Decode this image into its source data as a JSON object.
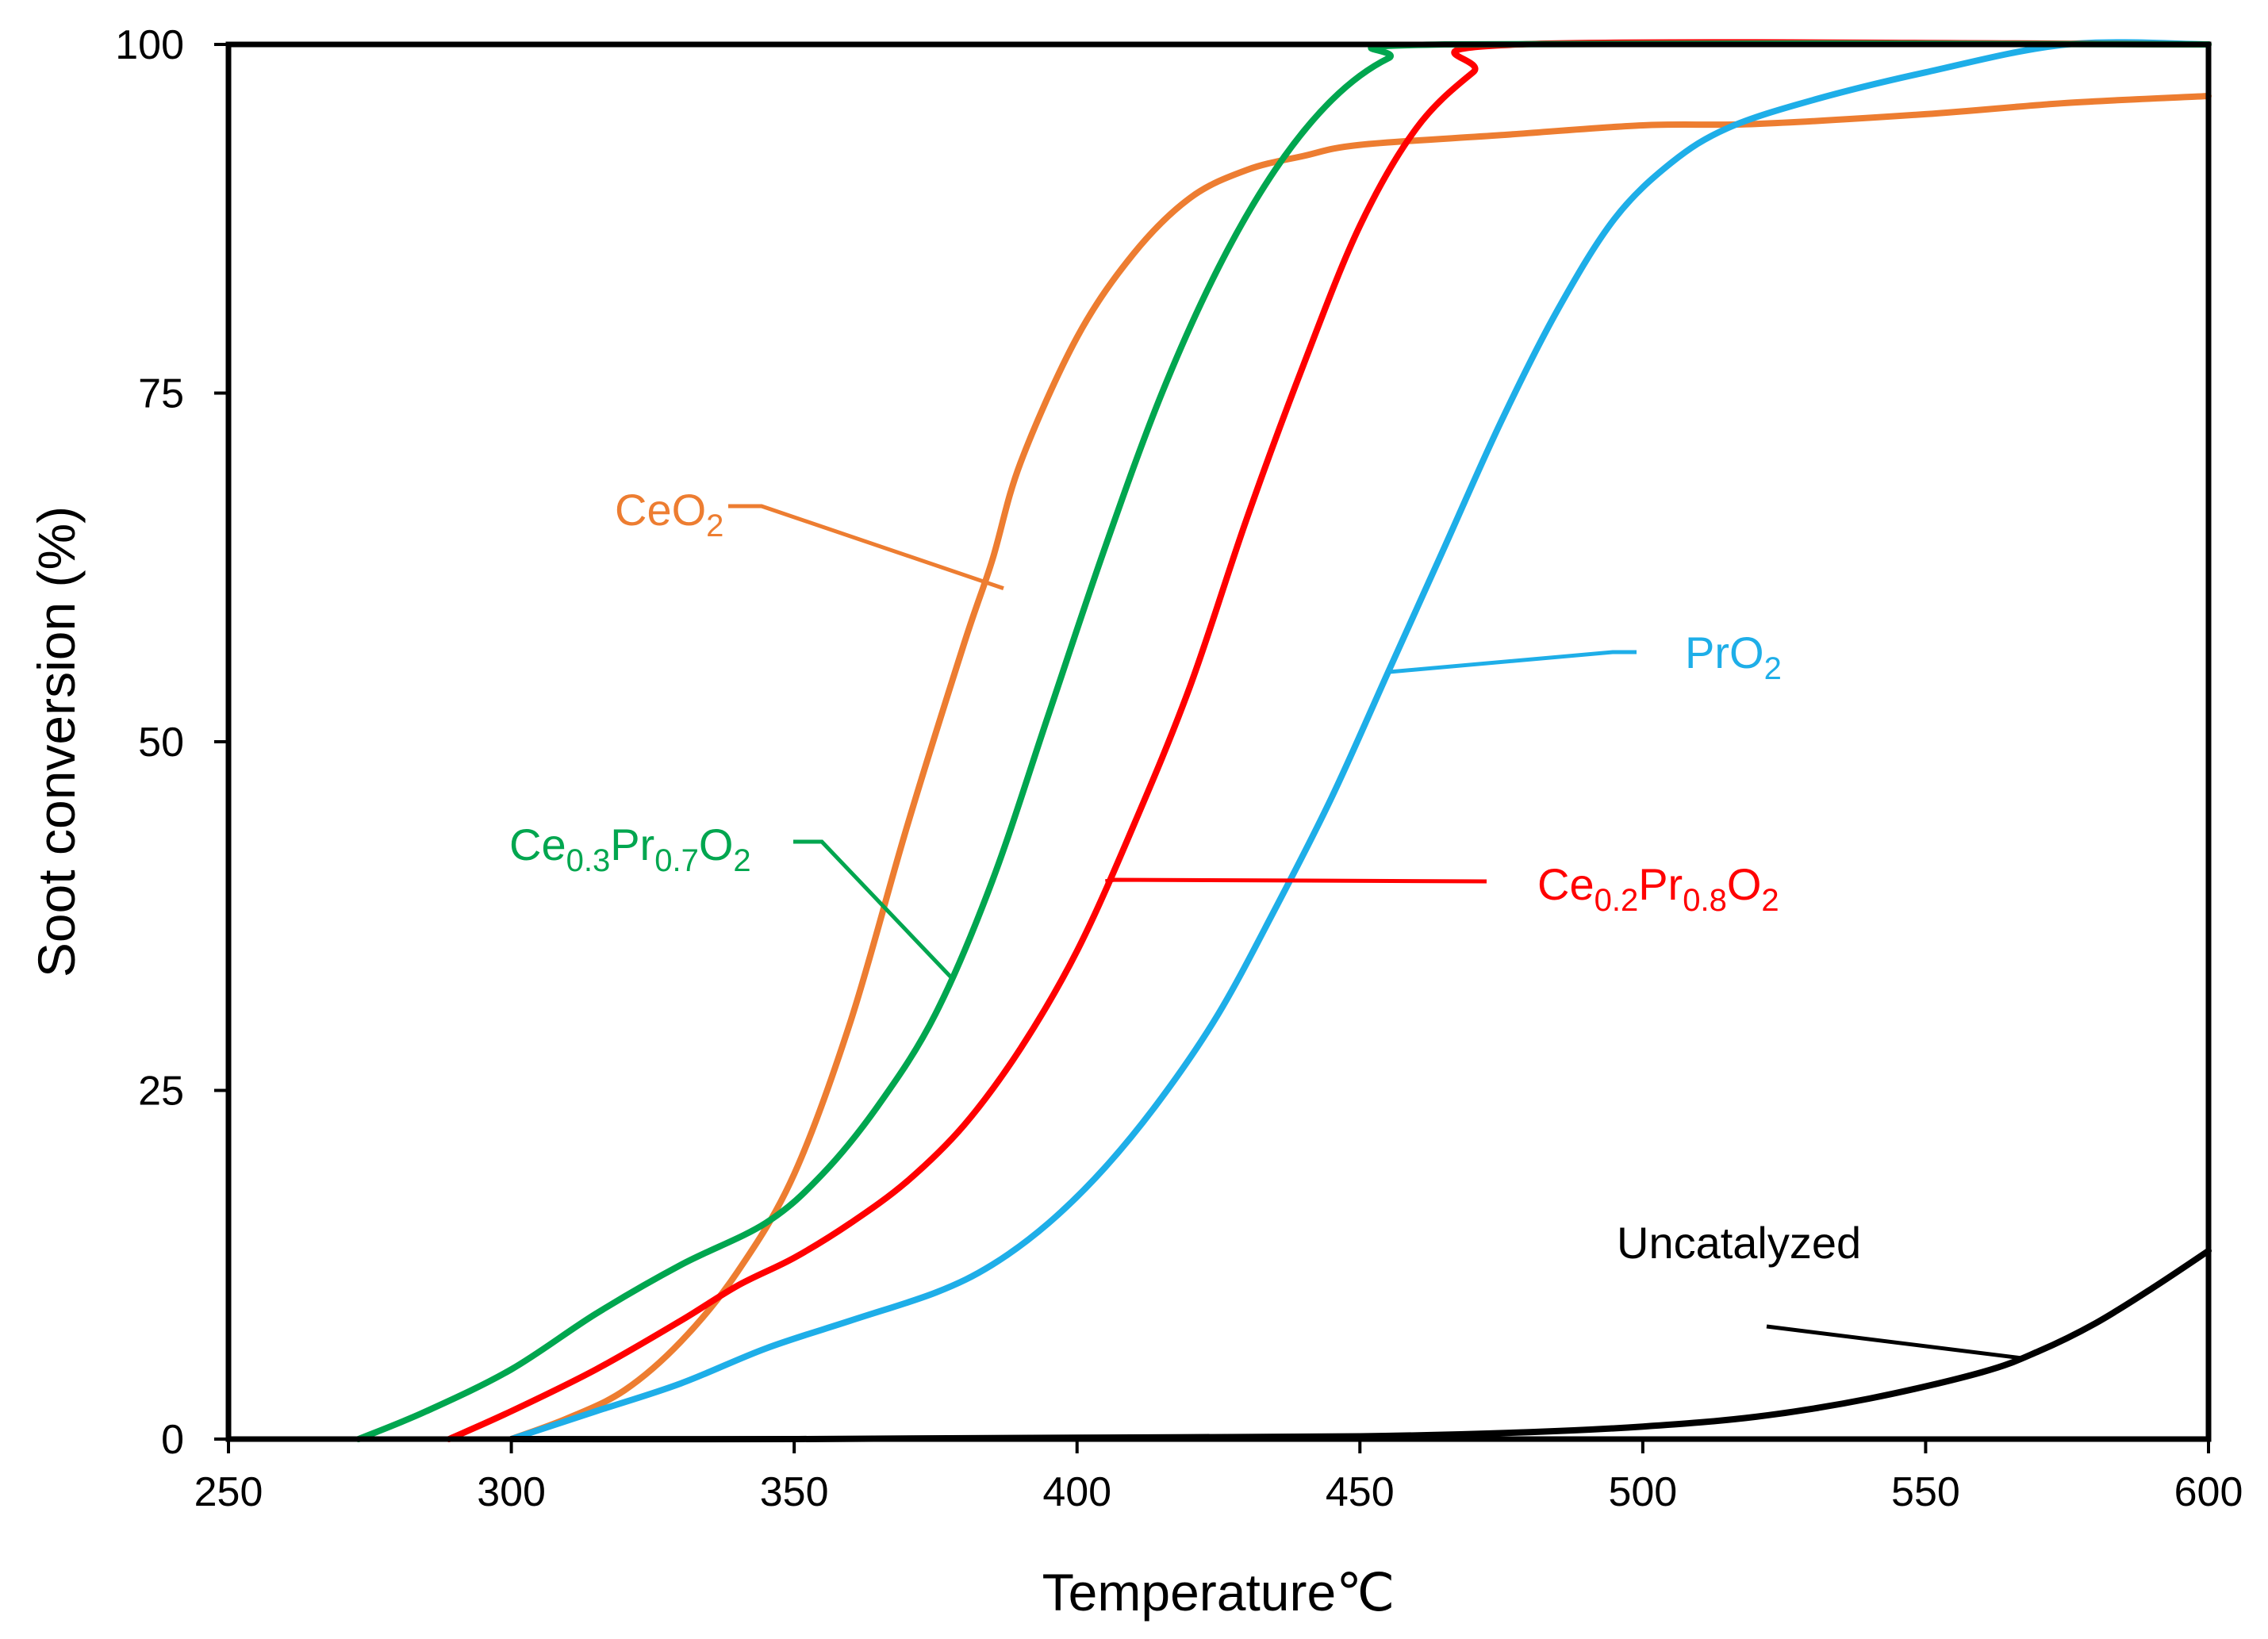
{
  "chart_data": {
    "type": "line",
    "title": "",
    "xlabel": "Temperature℃",
    "ylabel": "Soot conversion (%)",
    "xlim": [
      250,
      600
    ],
    "ylim": [
      0,
      100
    ],
    "xticks": [
      250,
      300,
      350,
      400,
      450,
      500,
      550,
      600
    ],
    "yticks": [
      0,
      25,
      50,
      75,
      100
    ],
    "grid": false,
    "series": [
      {
        "name": "CeO₂",
        "label_main": "CeO",
        "label_sub": "2",
        "color": "#ED7D31",
        "x": [
          300,
          310,
          320,
          330,
          340,
          350,
          360,
          370,
          380,
          385,
          390,
          400,
          410,
          420,
          430,
          440,
          450,
          475,
          500,
          520,
          550,
          575,
          600
        ],
        "y": [
          0,
          1.5,
          3.5,
          7,
          12,
          19,
          30,
          44,
          57,
          63,
          70,
          79,
          85,
          89,
          91,
          92,
          92.8,
          93.5,
          94.2,
          94.3,
          95,
          95.8,
          96.3
        ],
        "label_anchor": [
          387,
          61
        ]
      },
      {
        "name": "Ce₀.₃Pr₀.₇O₂",
        "label_parts": [
          "Ce",
          "0.3",
          "Pr",
          "0.7",
          "O",
          "2"
        ],
        "color": "#00A64F",
        "x": [
          273,
          285,
          300,
          315,
          330,
          345,
          355,
          365,
          375,
          385,
          395,
          405,
          415,
          425,
          435,
          445,
          455,
          465,
          600
        ],
        "y": [
          0,
          2,
          5,
          9,
          12.5,
          15.5,
          19,
          24,
          30.5,
          40,
          52,
          64,
          75,
          84,
          91,
          96,
          99,
          100,
          100
        ],
        "label_anchor": [
          378,
          33
        ]
      },
      {
        "name": "Ce₀.₂Pr₀.₈O₂",
        "label_parts": [
          "Ce",
          "0.2",
          "Pr",
          "0.8",
          "O",
          "2"
        ],
        "color": "#FF0000",
        "x": [
          289,
          300,
          315,
          330,
          340,
          350,
          360,
          370,
          380,
          390,
          400,
          410,
          420,
          430,
          440,
          450,
          460,
          470,
          478,
          600
        ],
        "y": [
          0,
          2,
          5,
          8.5,
          11,
          13,
          15.5,
          18.5,
          22.5,
          28,
          35,
          44,
          54,
          66,
          77,
          87,
          94,
          98,
          100,
          100
        ],
        "label_anchor": [
          405,
          40
        ]
      },
      {
        "name": "PrO₂",
        "label_main": "PrO",
        "label_sub": "2",
        "color": "#1EAEE8",
        "x": [
          300,
          315,
          330,
          345,
          360,
          375,
          385,
          395,
          405,
          415,
          425,
          435,
          445,
          455,
          465,
          475,
          485,
          495,
          505,
          515,
          530,
          550,
          575,
          600
        ],
        "y": [
          0,
          2,
          4,
          6.5,
          8.5,
          10.5,
          12.5,
          15.5,
          19.5,
          24.5,
          30.5,
          38,
          46,
          55,
          64,
          73,
          81,
          87.5,
          91.5,
          94,
          96,
          98,
          100,
          100
        ],
        "label_anchor": [
          455,
          55
        ]
      },
      {
        "name": "Uncatalyzed",
        "label_main": "Uncatalyzed",
        "color": "#000000",
        "x": [
          300,
          350,
          400,
          450,
          480,
          500,
          520,
          540,
          560,
          570,
          580,
          590,
          600
        ],
        "y": [
          0,
          0,
          0.1,
          0.2,
          0.5,
          0.9,
          1.6,
          2.9,
          4.8,
          6.3,
          8.3,
          10.8,
          13.5
        ],
        "label_anchor": [
          567,
          5.8
        ]
      }
    ]
  }
}
